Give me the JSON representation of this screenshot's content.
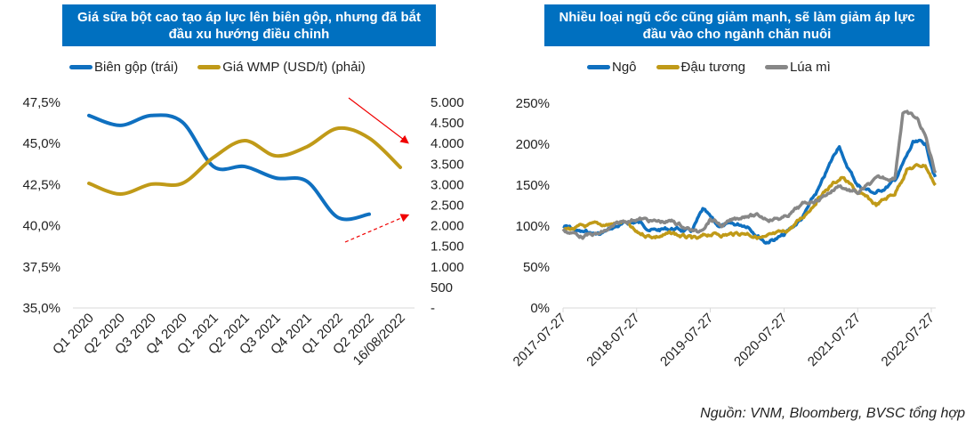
{
  "colors": {
    "header_bg": "#0070C0",
    "blue": "#0F70C0",
    "gold": "#C09A18",
    "gray": "#878787",
    "arrow": "#F00000"
  },
  "left": {
    "title": "Giá sữa bột cao tạo áp lực lên biên gộp, nhưng đã bắt đầu xu hướng điều chỉnh"
  },
  "right": {
    "title": "Nhiều loại ngũ cốc cũng giảm mạnh, sẽ làm giảm áp lực đầu vào cho ngành chăn nuôi"
  },
  "source": "Nguồn: VNM, Bloomberg, BVSC tổng hợp",
  "chart_data": [
    {
      "type": "line",
      "title": "Giá sữa bột cao tạo áp lực lên biên gộp, nhưng đã bắt đầu xu hướng điều chỉnh",
      "legend_position": "top",
      "grid": false,
      "categories": [
        "Q1 2020",
        "Q2 2020",
        "Q3 2020",
        "Q4 2020",
        "Q1 2021",
        "Q2 2021",
        "Q3 2021",
        "Q4 2021",
        "Q1 2022",
        "Q2 2022",
        "16/08/2022"
      ],
      "y_left": {
        "ticks": [
          "35,0%",
          "37,5%",
          "40,0%",
          "42,5%",
          "45,0%",
          "47,5%"
        ],
        "range": [
          35,
          47.5
        ]
      },
      "y_right": {
        "ticks": [
          "-",
          "500",
          "1.000",
          "1.500",
          "2.000",
          "2.500",
          "3.000",
          "3.500",
          "4.000",
          "4.500",
          "5.000"
        ],
        "range": [
          0,
          5000
        ]
      },
      "series": [
        {
          "name": "Biên gộp (trái)",
          "axis": "left",
          "color": "#0F70C0",
          "values": [
            46.7,
            46.1,
            46.7,
            46.3,
            43.6,
            43.6,
            42.9,
            42.7,
            40.5,
            40.7,
            null
          ]
        },
        {
          "name": "Giá WMP (USD/t) (phải)",
          "axis": "right",
          "color": "#C09A18",
          "values": [
            3030,
            2770,
            3010,
            3030,
            3660,
            4070,
            3700,
            3920,
            4370,
            4130,
            3420
          ]
        }
      ],
      "annotations": [
        {
          "type": "arrow",
          "style": "solid",
          "direction": "down"
        },
        {
          "type": "arrow",
          "style": "dashed",
          "direction": "up"
        }
      ]
    },
    {
      "type": "line",
      "title": "Nhiều loại ngũ cốc cũng giảm mạnh, sẽ làm giảm áp lực đầu vào cho ngành chăn nuôi",
      "legend_position": "top",
      "grid": false,
      "x_ticks": [
        "2017-07-27",
        "2018-07-27",
        "2019-07-27",
        "2020-07-27",
        "2021-07-27",
        "2022-07-27"
      ],
      "x_range": [
        "2017-07-27",
        "2022-08-16"
      ],
      "y_ticks": [
        "0%",
        "50%",
        "100%",
        "150%",
        "200%",
        "250%"
      ],
      "y_range": [
        0,
        250
      ],
      "series": [
        {
          "name": "Ngô",
          "color": "#0F70C0",
          "points": [
            [
              "2017-07-27",
              100
            ],
            [
              "2017-10-27",
              92
            ],
            [
              "2018-01-27",
              90
            ],
            [
              "2018-04-27",
              100
            ],
            [
              "2018-07-27",
              105
            ],
            [
              "2018-10-27",
              95
            ],
            [
              "2019-01-27",
              97
            ],
            [
              "2019-04-27",
              93
            ],
            [
              "2019-06-20",
              118
            ],
            [
              "2019-08-27",
              100
            ],
            [
              "2019-10-27",
              100
            ],
            [
              "2020-01-27",
              102
            ],
            [
              "2020-04-27",
              82
            ],
            [
              "2020-07-27",
              88
            ],
            [
              "2020-10-27",
              110
            ],
            [
              "2021-01-27",
              150
            ],
            [
              "2021-04-27",
              200
            ],
            [
              "2021-05-20",
              180
            ],
            [
              "2021-07-27",
              150
            ],
            [
              "2021-10-27",
              140
            ],
            [
              "2022-01-27",
              155
            ],
            [
              "2022-04-27",
              200
            ],
            [
              "2022-06-27",
              200
            ],
            [
              "2022-08-16",
              160
            ]
          ]
        },
        {
          "name": "Đậu tương",
          "color": "#C09A18",
          "points": [
            [
              "2017-07-27",
              95
            ],
            [
              "2017-10-27",
              98
            ],
            [
              "2018-01-27",
              100
            ],
            [
              "2018-05-27",
              105
            ],
            [
              "2018-07-27",
              90
            ],
            [
              "2018-10-27",
              88
            ],
            [
              "2019-01-27",
              90
            ],
            [
              "2019-05-27",
              82
            ],
            [
              "2019-07-27",
              90
            ],
            [
              "2019-10-27",
              90
            ],
            [
              "2020-01-27",
              92
            ],
            [
              "2020-04-27",
              85
            ],
            [
              "2020-07-27",
              90
            ],
            [
              "2020-10-27",
              110
            ],
            [
              "2021-01-27",
              140
            ],
            [
              "2021-05-10",
              160
            ],
            [
              "2021-07-27",
              140
            ],
            [
              "2021-10-27",
              125
            ],
            [
              "2022-01-27",
              140
            ],
            [
              "2022-03-27",
              170
            ],
            [
              "2022-06-27",
              175
            ],
            [
              "2022-08-16",
              150
            ]
          ]
        },
        {
          "name": "Lúa mì",
          "color": "#878787",
          "points": [
            [
              "2017-07-27",
              95
            ],
            [
              "2017-10-27",
              88
            ],
            [
              "2018-01-27",
              90
            ],
            [
              "2018-05-27",
              105
            ],
            [
              "2018-07-27",
              110
            ],
            [
              "2018-10-27",
              105
            ],
            [
              "2019-01-27",
              105
            ],
            [
              "2019-05-27",
              92
            ],
            [
              "2019-07-27",
              110
            ],
            [
              "2019-09-27",
              100
            ],
            [
              "2020-01-27",
              115
            ],
            [
              "2020-04-27",
              110
            ],
            [
              "2020-07-27",
              110
            ],
            [
              "2020-10-27",
              125
            ],
            [
              "2021-01-27",
              135
            ],
            [
              "2021-04-27",
              150
            ],
            [
              "2021-07-27",
              140
            ],
            [
              "2021-10-27",
              155
            ],
            [
              "2022-01-27",
              160
            ],
            [
              "2022-03-08",
              240
            ],
            [
              "2022-05-17",
              230
            ],
            [
              "2022-06-27",
              210
            ],
            [
              "2022-08-16",
              165
            ]
          ]
        }
      ]
    }
  ]
}
